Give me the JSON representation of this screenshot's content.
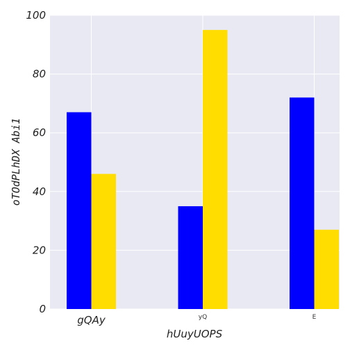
{
  "chart_data": {
    "type": "bar",
    "categories": [
      "gQAy",
      "yQ",
      "E"
    ],
    "series": [
      {
        "values": [
          67,
          35,
          72
        ],
        "color": "#0000ff"
      },
      {
        "values": [
          46,
          95,
          27
        ],
        "color": "#ffdd00"
      }
    ],
    "xlabel": "hUuyUOPS",
    "ylabel": "oTOdPLhDX Abi1",
    "ylim": [
      0,
      100
    ],
    "yticks": [
      "0",
      "20",
      "40",
      "60",
      "80",
      "100"
    ],
    "grid": true,
    "background": "#e9e9f3"
  }
}
